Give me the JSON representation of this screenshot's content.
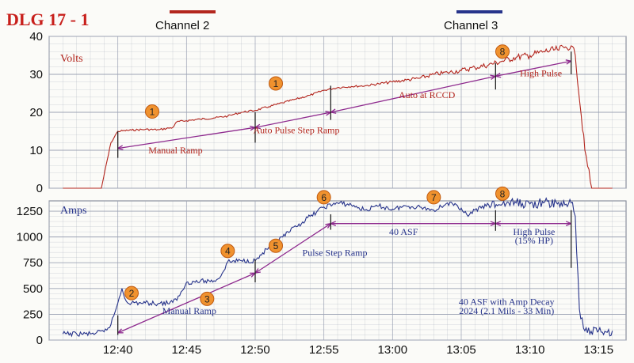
{
  "figure_title": "DLG 17 - 1",
  "colors": {
    "channel2": "#b3261e",
    "channel3": "#27348b",
    "annotation": "#8e2a8e",
    "marker_fill": "#f0922e",
    "marker_stroke": "#c05a10",
    "grid": "#9ca3b4",
    "background": "#fbfbf8"
  },
  "legend": [
    {
      "name": "Channel 2",
      "color": "#b3261e"
    },
    {
      "name": "Channel 3",
      "color": "#27348b"
    }
  ],
  "chart_data": [
    {
      "type": "line",
      "panel": "top",
      "ylabel": "Volts",
      "ylim": [
        0,
        40
      ],
      "yticks": [
        0,
        10,
        20,
        30,
        40
      ],
      "xlim": [
        "12:35",
        "13:17"
      ],
      "xticks": [],
      "grid": true,
      "series": [
        {
          "name": "Channel 2",
          "points": [
            [
              "12:36",
              0
            ],
            [
              "12:37",
              0
            ],
            [
              "12:38",
              0
            ],
            [
              "12:38.8",
              0
            ],
            [
              "12:39.5",
              12
            ],
            [
              "12:40",
              15
            ],
            [
              "12:41",
              15.3
            ],
            [
              "12:42",
              15.5
            ],
            [
              "12:43",
              15.4
            ],
            [
              "12:44",
              16
            ],
            [
              "12:44.3",
              17.5
            ],
            [
              "12:45",
              17.8
            ],
            [
              "12:46",
              18.2
            ],
            [
              "12:47",
              18.5
            ],
            [
              "12:48",
              19
            ],
            [
              "12:48.5",
              19.5
            ],
            [
              "12:49",
              20
            ],
            [
              "12:50",
              20.5
            ],
            [
              "12:51",
              21.5
            ],
            [
              "12:52",
              22.5
            ],
            [
              "12:53",
              23.5
            ],
            [
              "12:54",
              24.5
            ],
            [
              "12:55",
              25.8
            ],
            [
              "12:56",
              26.5
            ],
            [
              "12:57",
              26.8
            ],
            [
              "12:58",
              27
            ],
            [
              "12:59",
              27.5
            ],
            [
              "13:00",
              28
            ],
            [
              "13:01",
              28.5
            ],
            [
              "13:02",
              29
            ],
            [
              "13:03",
              30
            ],
            [
              "13:04",
              30.5
            ],
            [
              "13:05",
              31
            ],
            [
              "13:06",
              31.8
            ],
            [
              "13:07",
              32.5
            ],
            [
              "13:08",
              33.5
            ],
            [
              "13:09",
              34.5
            ],
            [
              "13:10",
              35
            ],
            [
              "13:11",
              36
            ],
            [
              "13:12",
              36.5
            ],
            [
              "13:12.5",
              37
            ],
            [
              "13:13",
              37.5
            ],
            [
              "13:13.3",
              35
            ],
            [
              "13:14",
              10
            ],
            [
              "13:14.5",
              0
            ],
            [
              "13:16",
              0
            ]
          ]
        }
      ],
      "annotations": [
        {
          "text": "Manual Ramp",
          "x": "12:44.2",
          "y": 9.2
        },
        {
          "text": "Auto Pulse Step Ramp",
          "x": "12:53",
          "y": 14.5
        },
        {
          "text": "Auto at RCCD",
          "x": "13:02.5",
          "y": 23.8
        },
        {
          "text": "High Pulse",
          "x": "13:10.8",
          "y": 29.5
        }
      ],
      "markers": [
        {
          "label": "1",
          "x": "12:42.5",
          "y": 20.2
        },
        {
          "label": "1",
          "x": "12:51.5",
          "y": 27.6
        },
        {
          "label": "8",
          "x": "13:08",
          "y": 36
        }
      ],
      "arrows": [
        {
          "from": [
            "12:40",
            10.5
          ],
          "to": [
            "12:50",
            16
          ]
        },
        {
          "from": [
            "12:50",
            16
          ],
          "to": [
            "12:55.5",
            20
          ]
        },
        {
          "from": [
            "12:55.5",
            20
          ],
          "to": [
            "13:07.5",
            29.5
          ]
        },
        {
          "from": [
            "13:07.5",
            29.5
          ],
          "to": [
            "13:13",
            33.5
          ]
        }
      ],
      "ticks": [
        {
          "x": "12:40",
          "y_low": 8,
          "y_high": 15
        },
        {
          "x": "12:50",
          "y_low": 12,
          "y_high": 20
        },
        {
          "x": "12:55.5",
          "y_low": 18,
          "y_high": 27
        },
        {
          "x": "13:07.5",
          "y_low": 26,
          "y_high": 33
        },
        {
          "x": "13:13",
          "y_low": 30,
          "y_high": 36
        }
      ]
    },
    {
      "type": "line",
      "panel": "bottom",
      "ylabel": "Amps",
      "ylim": [
        0,
        1350
      ],
      "yticks": [
        0,
        250,
        500,
        750,
        1000,
        1250
      ],
      "xlim": [
        "12:35",
        "13:17"
      ],
      "xticks": [
        "12:40",
        "12:45",
        "12:50",
        "12:55",
        "13:00",
        "13:05",
        "13:10",
        "13:15"
      ],
      "grid": true,
      "series": [
        {
          "name": "Channel 3",
          "points": [
            [
              "12:36",
              60
            ],
            [
              "12:37",
              60
            ],
            [
              "12:38",
              60
            ],
            [
              "12:39",
              80
            ],
            [
              "12:39.5",
              150
            ],
            [
              "12:40",
              360
            ],
            [
              "12:40.3",
              500
            ],
            [
              "12:40.6",
              380
            ],
            [
              "12:41",
              360
            ],
            [
              "12:42",
              360
            ],
            [
              "12:43",
              355
            ],
            [
              "12:44",
              365
            ],
            [
              "12:44.5",
              430
            ],
            [
              "12:45",
              560
            ],
            [
              "12:46",
              570
            ],
            [
              "12:47",
              575
            ],
            [
              "12:47.5",
              620
            ],
            [
              "12:48",
              760
            ],
            [
              "12:49",
              770
            ],
            [
              "12:50",
              770
            ],
            [
              "12:51",
              900
            ],
            [
              "12:52",
              1000
            ],
            [
              "12:53",
              1100
            ],
            [
              "12:54",
              1200
            ],
            [
              "12:55",
              1290
            ],
            [
              "12:56",
              1330
            ],
            [
              "12:57",
              1310
            ],
            [
              "12:58",
              1260
            ],
            [
              "12:59",
              1300
            ],
            [
              "13:00",
              1270
            ],
            [
              "13:01",
              1300
            ],
            [
              "13:02",
              1290
            ],
            [
              "13:03",
              1260
            ],
            [
              "13:04",
              1330
            ],
            [
              "13:05",
              1280
            ],
            [
              "13:05.5",
              1200
            ],
            [
              "13:06",
              1260
            ],
            [
              "13:07",
              1310
            ],
            [
              "13:08",
              1320
            ],
            [
              "13:09",
              1330
            ],
            [
              "13:10",
              1320
            ],
            [
              "13:11",
              1330
            ],
            [
              "13:12",
              1320
            ],
            [
              "13:13",
              1330
            ],
            [
              "13:13.3",
              1200
            ],
            [
              "13:13.6",
              300
            ],
            [
              "13:14",
              90
            ],
            [
              "13:15",
              90
            ],
            [
              "13:16",
              90
            ]
          ]
        }
      ],
      "annotations": [
        {
          "text": "Manual Ramp",
          "x": "12:45.2",
          "y": 255
        },
        {
          "text": "Pulse Step Ramp",
          "x": "12:55.8",
          "y": 815
        },
        {
          "text": "40 ASF",
          "x": "13:00.8",
          "y": 1020
        },
        {
          "text": "High Pulse",
          "x": "13:10.3",
          "y": 1020
        },
        {
          "text": "(15% HP)",
          "x": "13:10.3",
          "y": 935
        },
        {
          "text": "40 ASF with Amp Decay",
          "x": "13:08.3",
          "y": 340
        },
        {
          "text": "2024 (2.1 Mils - 33 Min)",
          "x": "13:08.3",
          "y": 255
        }
      ],
      "markers": [
        {
          "label": "2",
          "x": "12:41",
          "y": 455
        },
        {
          "label": "3",
          "x": "12:46.5",
          "y": 400
        },
        {
          "label": "4",
          "x": "12:48",
          "y": 865
        },
        {
          "label": "5",
          "x": "12:51.5",
          "y": 915
        },
        {
          "label": "6",
          "x": "12:55",
          "y": 1385
        },
        {
          "label": "7",
          "x": "13:03",
          "y": 1385
        },
        {
          "label": "8",
          "x": "13:08",
          "y": 1420
        }
      ],
      "arrows": [
        {
          "from": [
            "12:40",
            70
          ],
          "to": [
            "12:50",
            650
          ]
        },
        {
          "from": [
            "12:50",
            650
          ],
          "to": [
            "12:55.5",
            1130
          ]
        },
        {
          "from": [
            "12:55.5",
            1130
          ],
          "to": [
            "13:07.5",
            1130
          ]
        },
        {
          "from": [
            "13:07.5",
            1130
          ],
          "to": [
            "13:13",
            1130
          ]
        }
      ],
      "ticks": [
        {
          "x": "12:40",
          "y_low": 50,
          "y_high": 240
        },
        {
          "x": "12:50",
          "y_low": 560,
          "y_high": 780
        },
        {
          "x": "12:55.5",
          "y_low": 1070,
          "y_high": 1220
        },
        {
          "x": "13:07.5",
          "y_low": 1060,
          "y_high": 1260
        },
        {
          "x": "13:13",
          "y_low": 700,
          "y_high": 1260
        }
      ]
    }
  ]
}
